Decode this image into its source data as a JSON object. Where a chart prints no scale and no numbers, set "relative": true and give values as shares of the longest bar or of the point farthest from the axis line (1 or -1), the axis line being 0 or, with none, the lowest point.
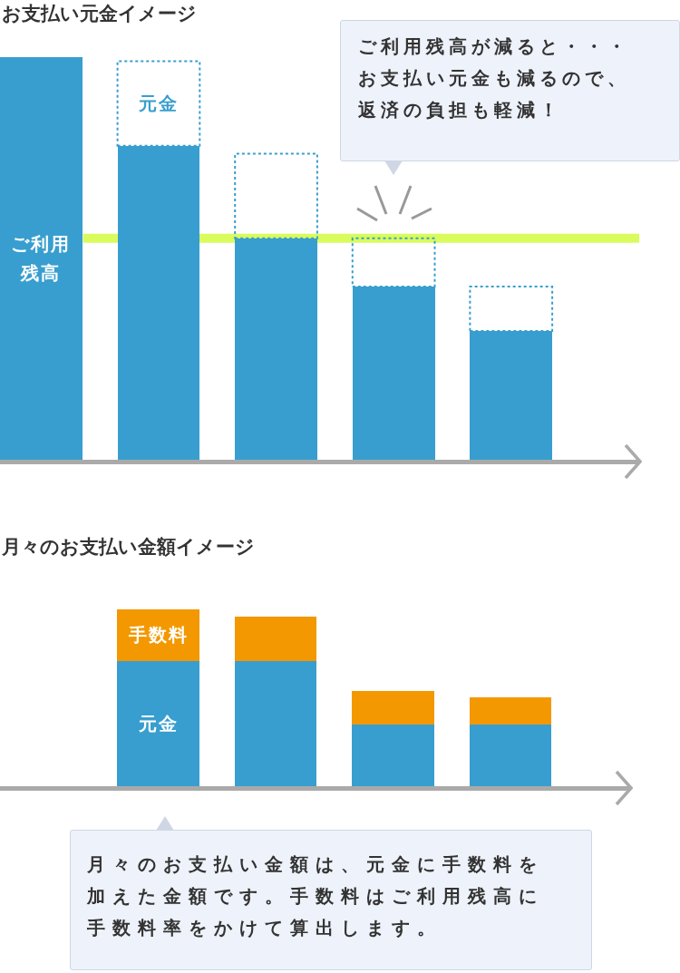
{
  "chart_data": [
    {
      "type": "bar",
      "title": "お支払い元金イメージ",
      "categories": [
        null,
        null,
        null,
        null,
        null
      ],
      "relative": true,
      "stacked": true,
      "series": [
        {
          "name": "ご利用残高",
          "color": "#389ecf",
          "values": [
            1,
            0.78,
            0.55,
            0.43,
            0.32
          ]
        },
        {
          "name": "元金",
          "color": "#389ecf",
          "line_style": "dotted",
          "values": [
            null,
            0.21,
            0.21,
            0.12,
            0.11
          ]
        }
      ],
      "ref_lines": [
        {
          "axis": "y",
          "value": 0.55,
          "color": "#d9fb5c"
        }
      ],
      "annotations": [
        "ご利用残高が減ると・・・お支払い元金も減るので、返済の負担も軽減！"
      ]
    },
    {
      "type": "bar",
      "title": "月々のお支払い金額イメージ",
      "categories": [
        null,
        null,
        null,
        null,
        null
      ],
      "relative": true,
      "stacked": true,
      "series": [
        {
          "name": "元金",
          "color": "#389ecf",
          "values": [
            null,
            0.71,
            0.71,
            0.35,
            0.35
          ]
        },
        {
          "name": "手数料",
          "color": "#f39800",
          "values": [
            null,
            0.29,
            0.25,
            0.19,
            0.15
          ]
        }
      ],
      "annotations": [
        "月々のお支払い金額は、元金に手数料を加えた金額です。手数料はご利用残高に手数料率をかけて算出します。"
      ]
    }
  ]
}
